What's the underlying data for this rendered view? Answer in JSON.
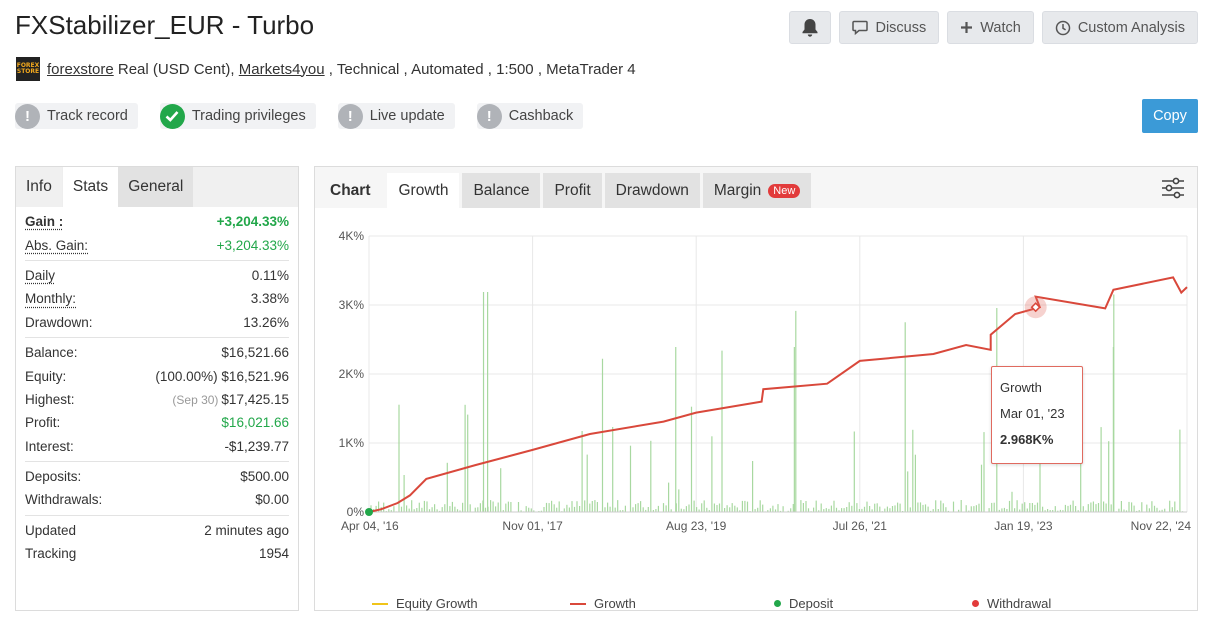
{
  "header": {
    "title": "FXStabilizer_EUR - Turbo",
    "discuss": "Discuss",
    "watch": "Watch",
    "custom_analysis": "Custom Analysis",
    "logo_text": [
      "FOREX",
      "STORE"
    ],
    "owner": "forexstore",
    "account_type": " Real (USD Cent), ",
    "broker": "Markets4you",
    "details": " , Technical , Automated , 1:500 , MetaTrader 4"
  },
  "badges": [
    {
      "label": "Track record",
      "status": "grey"
    },
    {
      "label": "Trading privileges",
      "status": "green"
    },
    {
      "label": "Live update",
      "status": "grey"
    },
    {
      "label": "Cashback",
      "status": "grey"
    }
  ],
  "copy_label": "Copy",
  "left_tabs": [
    "Info",
    "Stats",
    "General"
  ],
  "stats": {
    "gain_k": "Gain :",
    "gain_v": "+3,204.33%",
    "absgain_k": "Abs. Gain:",
    "absgain_v": "+3,204.33%",
    "daily_k": "Daily",
    "daily_v": "0.11%",
    "monthly_k": "Monthly:",
    "monthly_v": "3.38%",
    "drawdown_k": "Drawdown:",
    "drawdown_v": "13.26%",
    "balance_k": "Balance:",
    "balance_v": "$16,521.66",
    "equity_k": "Equity:",
    "equity_v": "(100.00%) $16,521.96",
    "highest_k": "Highest:",
    "highest_date": "(Sep 30)",
    "highest_v": "$17,425.15",
    "profit_k": "Profit:",
    "profit_v": "$16,021.66",
    "interest_k": "Interest:",
    "interest_v": "-$1,239.77",
    "deposits_k": "Deposits:",
    "deposits_v": "$500.00",
    "withdrawals_k": "Withdrawals:",
    "withdrawals_v": "$0.00",
    "updated_k": "Updated",
    "updated_v": "2 minutes ago",
    "tracking_k": "Tracking",
    "tracking_v": "1954"
  },
  "chart_tabs": {
    "label": "Chart",
    "growth": "Growth",
    "balance": "Balance",
    "profit": "Profit",
    "drawdown": "Drawdown",
    "margin": "Margin",
    "new": "New"
  },
  "tooltip": {
    "series": "Growth",
    "date": "Mar 01, '23",
    "value": "2.968K%"
  },
  "colors": {
    "growth": "#d9483b",
    "equity": "#f0c419",
    "deposit": "#22a74a",
    "withdrawal": "#e23b3b",
    "bars": "#a8d8a0",
    "accent": "#3b9ad7"
  },
  "chart_data": {
    "type": "line",
    "ylim": [
      0,
      4000
    ],
    "yticks": [
      "0%",
      "1K%",
      "2K%",
      "3K%",
      "4K%"
    ],
    "xticks": [
      "Apr 04, '16",
      "Nov 01, '17",
      "Aug 23, '19",
      "Jul 26, '21",
      "Jan 19, '23",
      "Nov 22, '24"
    ],
    "legend": [
      "Equity Growth",
      "Growth",
      "Deposit",
      "Withdrawal"
    ],
    "growth": [
      [
        "Apr 04, '16",
        0
      ],
      [
        "Jun 2016",
        40
      ],
      [
        "Sep 2016",
        130
      ],
      [
        "Nov 2016",
        240
      ],
      [
        "Jan 2017",
        480
      ],
      [
        "May 2017",
        680
      ],
      [
        "Nov 01, '17",
        900
      ],
      [
        "Jun 2018",
        1130
      ],
      [
        "Jan 2019",
        1310
      ],
      [
        "Aug 23, '19",
        1440
      ],
      [
        "Mar 2020",
        1600
      ],
      [
        "Apr 2020",
        1780
      ],
      [
        "Oct 2020",
        1860
      ],
      [
        "Jul 26, '21",
        2190
      ],
      [
        "Jan 2022",
        2290
      ],
      [
        "Jun 2022",
        2420
      ],
      [
        "Jul 2022",
        2350
      ],
      [
        "Aug 2022",
        2570
      ],
      [
        "Jan 19, '23",
        2870
      ],
      [
        "Mar 01, '23",
        2968
      ],
      [
        "Aug 2023",
        3120
      ],
      [
        "Sep 2023",
        2950
      ],
      [
        "Jan 2024",
        3220
      ],
      [
        "Nov 22, '24",
        3400
      ],
      [
        "Nov 2024",
        3180
      ]
    ]
  }
}
